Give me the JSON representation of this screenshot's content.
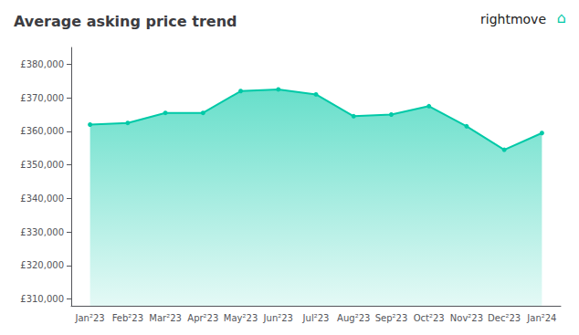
{
  "chart_data": {
    "type": "line",
    "title": "Average asking price trend",
    "categories": [
      "Jan²23",
      "Feb²23",
      "Mar²23",
      "Apr²23",
      "May²23",
      "Jun²23",
      "Jul²23",
      "Aug²23",
      "Sep²23",
      "Oct²23",
      "Nov²23",
      "Dec²23",
      "Jan²24"
    ],
    "values": [
      362000,
      362500,
      365500,
      365500,
      372000,
      372500,
      371000,
      364500,
      365000,
      367500,
      361500,
      354500,
      359500
    ],
    "color": "#00c9a7",
    "marker": "circle",
    "ylim": [
      308000,
      385000
    ],
    "yticks": [
      {
        "value": 310000,
        "label": "£310,000"
      },
      {
        "value": 320000,
        "label": "£320,000"
      },
      {
        "value": 330000,
        "label": "£330,000"
      },
      {
        "value": 340000,
        "label": "£340,000"
      },
      {
        "value": 350000,
        "label": "£350,000"
      },
      {
        "value": 360000,
        "label": "£360,000"
      },
      {
        "value": 370000,
        "label": "£370,000"
      },
      {
        "value": 380000,
        "label": "£380,000"
      }
    ],
    "grid": false,
    "annotations": [
      "rightmove",
      "⌂"
    ]
  }
}
